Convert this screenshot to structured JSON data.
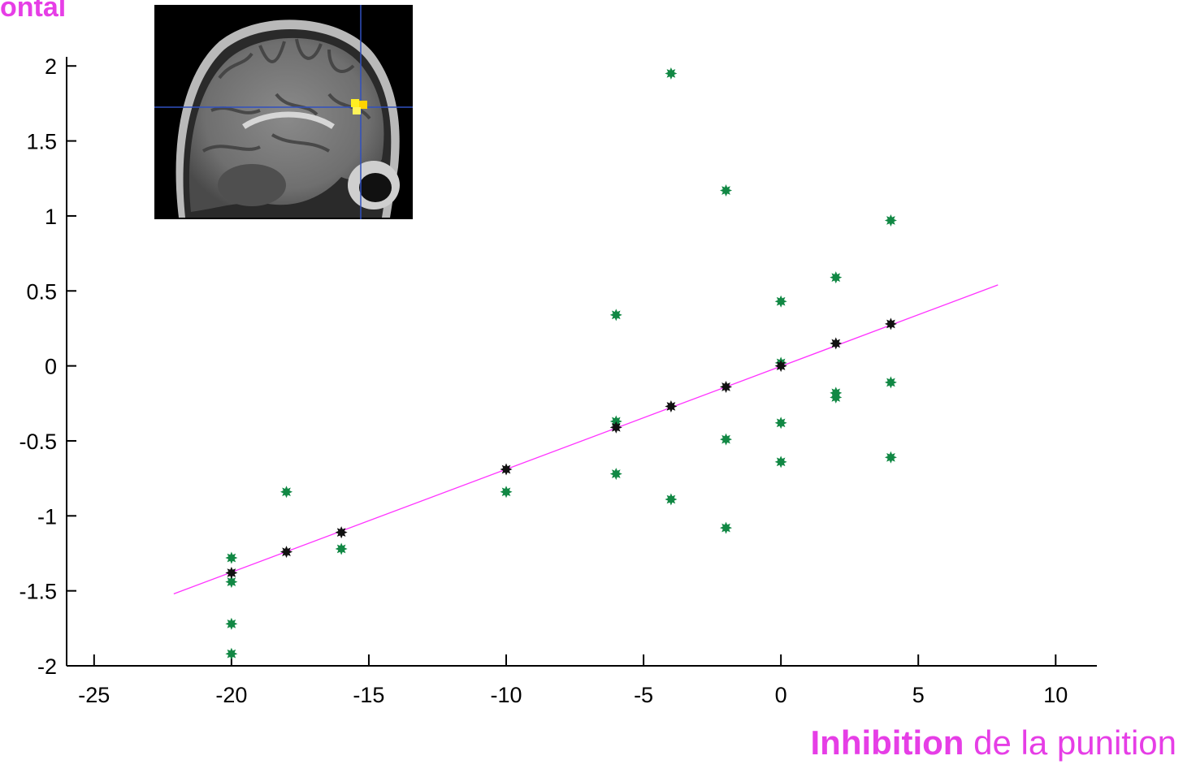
{
  "corner_label": "ontal",
  "xlabel_bold": "Inhibition",
  "xlabel_rest": " de la punition",
  "inset": {
    "icon": "brain-mri-sagittal-icon",
    "highlight_color": "#ffee22",
    "crosshair_color": "#3050c0"
  },
  "colors": {
    "label": "#e63ee6",
    "fit_line": "#ff33ff",
    "green_points": "#118844",
    "black_points": "#111111",
    "axis": "#000000"
  },
  "chart_data": {
    "type": "scatter",
    "xlim": [
      -26,
      11.5
    ],
    "ylim": [
      -2,
      2.05
    ],
    "xticks": [
      -25,
      -20,
      -15,
      -10,
      -5,
      0,
      5,
      10
    ],
    "xtick_labels": [
      "-25",
      "-20",
      "-15",
      "-10",
      "-5",
      "0",
      "5",
      "10"
    ],
    "yticks": [
      2,
      1.5,
      1,
      0.5,
      0,
      -0.5,
      -1,
      -1.5,
      -2
    ],
    "ytick_labels": [
      "2",
      "1.5",
      "1",
      "0.5",
      "0",
      "-0.5",
      "-1",
      "-1.5",
      "-2"
    ],
    "xlabel": "Inhibition de la punition",
    "ylabel": "",
    "grid": false,
    "series": [
      {
        "marker": "star",
        "color": "#118844",
        "points": [
          [
            -20,
            -1.28
          ],
          [
            -20,
            -1.44
          ],
          [
            -20,
            -1.72
          ],
          [
            -20,
            -1.92
          ],
          [
            -18,
            -0.84
          ],
          [
            -16,
            -1.22
          ],
          [
            -10,
            -0.84
          ],
          [
            -6,
            0.34
          ],
          [
            -6,
            -0.37
          ],
          [
            -6,
            -0.72
          ],
          [
            -4,
            1.95
          ],
          [
            -4,
            -0.89
          ],
          [
            -2,
            1.17
          ],
          [
            -2,
            -0.49
          ],
          [
            -2,
            -1.08
          ],
          [
            0,
            0.43
          ],
          [
            0,
            0.02
          ],
          [
            0,
            -0.38
          ],
          [
            0,
            -0.64
          ],
          [
            2,
            0.59
          ],
          [
            2,
            -0.18
          ],
          [
            2,
            -0.21
          ],
          [
            4,
            0.97
          ],
          [
            4,
            -0.11
          ],
          [
            4,
            -0.61
          ]
        ]
      },
      {
        "marker": "star",
        "color": "#111111",
        "points": [
          [
            -20,
            -1.38
          ],
          [
            -18,
            -1.24
          ],
          [
            -16,
            -1.11
          ],
          [
            -10,
            -0.69
          ],
          [
            -6,
            -0.41
          ],
          [
            -4,
            -0.27
          ],
          [
            -2,
            -0.14
          ],
          [
            0,
            0.0
          ],
          [
            2,
            0.15
          ],
          [
            4,
            0.28
          ]
        ]
      }
    ],
    "fit_line": {
      "x": [
        -22.1,
        7.9
      ],
      "y": [
        -1.52,
        0.54
      ],
      "color": "#ff33ff"
    }
  }
}
